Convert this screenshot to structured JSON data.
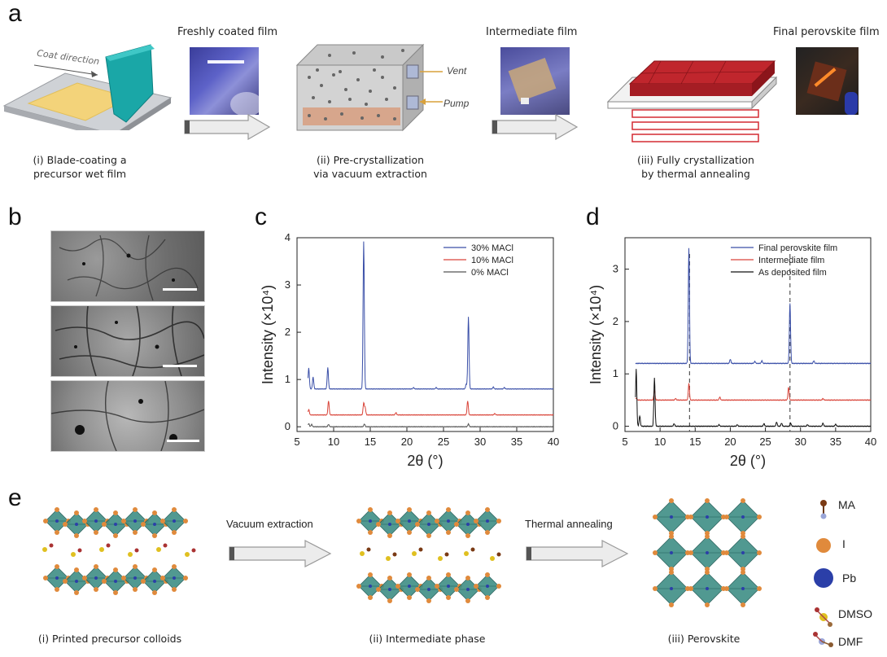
{
  "panels": {
    "a": "a",
    "b": "b",
    "c": "c",
    "d": "d",
    "e": "e"
  },
  "panel_a": {
    "coat_direction": "Coat direction",
    "freshly_coated_label": "Freshly coated film",
    "intermediate_label": "Intermediate film",
    "final_label": "Final perovskite film",
    "vent_label": "Vent",
    "pump_label": "Pump",
    "step1_line1": "(i) Blade-coating a",
    "step1_line2": "precursor wet film",
    "step2_line1": "(ii) Pre-crystallization",
    "step2_line2": "via vacuum extraction",
    "step3_line1": "(iii) Fully crystallization",
    "step3_line2": "by thermal annealing"
  },
  "panel_e": {
    "step1": "(i) Printed precursor colloids",
    "step2": "(ii) Intermediate phase",
    "step3": "(iii) Perovskite",
    "arrow1": "Vacuum extraction",
    "arrow2": "Thermal annealing",
    "legend": [
      "MA",
      "I",
      "Pb",
      "DMSO",
      "DMF"
    ]
  },
  "colors": {
    "blue_series": "#3a4fa8",
    "red_series": "#d9453a",
    "black_series": "#111111",
    "octahedra": "#3f8f86",
    "iodide": "#e08a3c",
    "lead": "#2b3fa8"
  },
  "chart_data": [
    {
      "type": "line",
      "panel": "c",
      "xlabel": "2θ (°)",
      "ylabel": "Intensity (×10⁴)",
      "xlim": [
        5,
        40
      ],
      "ylim": [
        -0.1,
        4.0
      ],
      "xticks": [
        5,
        10,
        15,
        20,
        25,
        30,
        35,
        40
      ],
      "yticks": [
        0,
        1,
        2,
        3,
        4
      ],
      "legend_position": "top-right",
      "series": [
        {
          "name": "30% MACl",
          "color": "#3a4fa8",
          "baseline": 0.8,
          "peaks": [
            [
              6.6,
              0.45
            ],
            [
              7.2,
              0.25
            ],
            [
              9.2,
              0.45
            ],
            [
              14.1,
              3.12
            ],
            [
              20.9,
              0.03
            ],
            [
              24.0,
              0.03
            ],
            [
              28.4,
              1.52
            ],
            [
              28.1,
              0.1
            ],
            [
              31.8,
              0.04
            ],
            [
              33.3,
              0.03
            ]
          ]
        },
        {
          "name": "10% MACl",
          "color": "#d9453a",
          "baseline": 0.25,
          "peaks": [
            [
              6.6,
              0.12
            ],
            [
              9.3,
              0.3
            ],
            [
              14.1,
              0.25
            ],
            [
              14.3,
              0.15
            ],
            [
              18.5,
              0.05
            ],
            [
              28.3,
              0.3
            ],
            [
              32.0,
              0.03
            ]
          ]
        },
        {
          "name": "0%  MACl",
          "color": "#555555",
          "baseline": 0.0,
          "peaks": [
            [
              6.6,
              0.07
            ],
            [
              7.0,
              0.05
            ],
            [
              9.3,
              0.05
            ],
            [
              14.2,
              0.06
            ],
            [
              28.4,
              0.06
            ]
          ]
        }
      ]
    },
    {
      "type": "line",
      "panel": "d",
      "xlabel": "2θ (°)",
      "ylabel": "Intensity (×10⁴)",
      "xlim": [
        5,
        40
      ],
      "ylim": [
        -0.1,
        3.6
      ],
      "xticks": [
        5,
        10,
        15,
        20,
        25,
        30,
        35,
        40
      ],
      "yticks": [
        0,
        1,
        2,
        3
      ],
      "dashed_lines_x": [
        14.2,
        28.5
      ],
      "legend_position": "top-right",
      "series": [
        {
          "name": "Final perovskite film",
          "color": "#3a4fa8",
          "baseline": 1.2,
          "peaks": [
            [
              14.1,
              2.2
            ],
            [
              20.0,
              0.08
            ],
            [
              23.5,
              0.04
            ],
            [
              24.5,
              0.05
            ],
            [
              28.5,
              1.15
            ],
            [
              31.9,
              0.05
            ]
          ]
        },
        {
          "name": "Intermediate film",
          "color": "#d9453a",
          "baseline": 0.5,
          "peaks": [
            [
              6.6,
              0.04
            ],
            [
              9.2,
              0.2
            ],
            [
              12.2,
              0.03
            ],
            [
              14.1,
              0.32
            ],
            [
              18.5,
              0.06
            ],
            [
              28.3,
              0.25
            ],
            [
              33.2,
              0.03
            ]
          ]
        },
        {
          "name": "As deposited film",
          "color": "#111111",
          "baseline": 0.0,
          "peaks": [
            [
              6.6,
              1.1
            ],
            [
              7.1,
              0.2
            ],
            [
              9.2,
              0.92
            ],
            [
              12.0,
              0.05
            ],
            [
              18.4,
              0.03
            ],
            [
              21.0,
              0.03
            ],
            [
              24.8,
              0.05
            ],
            [
              26.6,
              0.08
            ],
            [
              27.3,
              0.06
            ],
            [
              28.6,
              0.06
            ],
            [
              31.0,
              0.03
            ],
            [
              33.2,
              0.06
            ],
            [
              35.0,
              0.04
            ]
          ]
        }
      ]
    }
  ]
}
